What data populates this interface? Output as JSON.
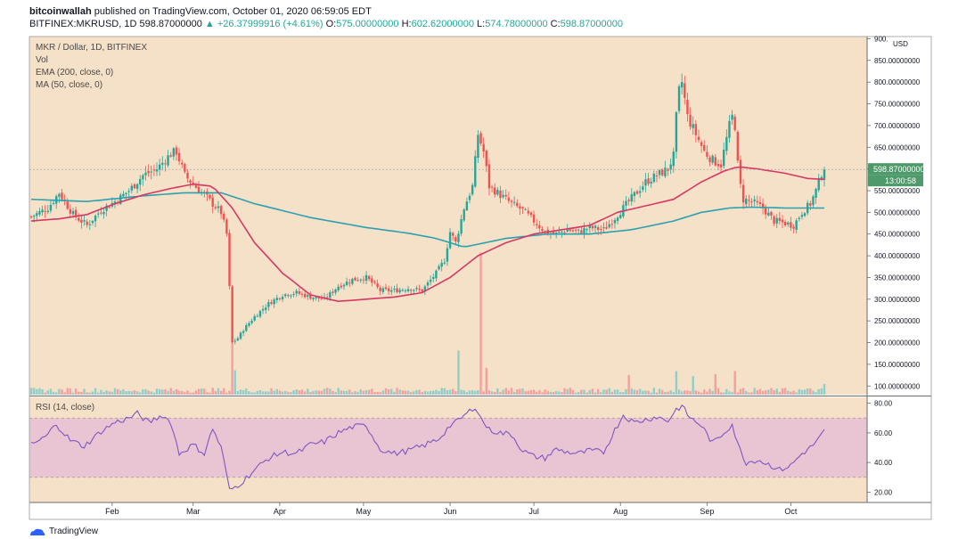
{
  "header": {
    "author": "bitcoinwallah",
    "published": "published on TradingView.com, October 01, 2020 06:59:05 EDT",
    "symbol": "BITFINEX:MKRUSD, 1D",
    "last": "598.87000000",
    "change": "+26.37999916 (+4.61%)",
    "o_label": "O:",
    "o": "575.00000000",
    "h_label": "H:",
    "h": "602.62000000",
    "l_label": "L:",
    "l": "574.78000000",
    "c_label": "C:",
    "c": "598.87000000"
  },
  "legend": {
    "title": "MKR / Dollar, 1D, BITFINEX",
    "vol": "Vol",
    "ema": "EMA (200, close, 0)",
    "ma": "MA (50, close, 0)"
  },
  "rsi_label": "RSI (14, close)",
  "price_badge": "598.87000000",
  "countdown_badge": "13:00:58",
  "currency": "USD",
  "brand": "TradingView",
  "colors": {
    "background": "#f5e0c8",
    "up": "#26a69a",
    "down": "#ef5350",
    "ema": "#2ba1b0",
    "ma": "#d63864",
    "rsi_line": "#7e57c2",
    "rsi_band": "#e9c4d2"
  },
  "chart_data": {
    "type": "candlestick",
    "price_axis": {
      "ylim": [
        80,
        905
      ],
      "ticks": [
        900,
        850,
        800,
        750,
        700,
        650,
        600,
        550,
        500,
        450,
        400,
        350,
        300,
        250,
        200,
        150,
        100
      ],
      "tick_labels": [
        "900.",
        "850.00000000",
        "800.00000000",
        "750.00000000",
        "700.00000000",
        "650.00000000",
        "600.00000000",
        "550.00000000",
        "500.00000000",
        "450.00000000",
        "400.00000000",
        "350.00000000",
        "300.00000000",
        "250.00000000",
        "200.00000000",
        "150.00000000",
        "100.00000000"
      ]
    },
    "rsi_axis": {
      "ylim": [
        13,
        84
      ],
      "ticks": [
        80,
        60,
        40,
        20
      ],
      "tick_labels": [
        "80.00",
        "60.00",
        "40.00",
        "20.00"
      ],
      "band": [
        30,
        70
      ]
    },
    "x_axis": {
      "months": [
        "Feb",
        "Mar",
        "Apr",
        "May",
        "Jun",
        "Jul",
        "Aug",
        "Sep",
        "Oct"
      ],
      "month_index": [
        29,
        58,
        89,
        119,
        150,
        180,
        211,
        242,
        272
      ]
    },
    "close_anchors": [
      [
        0,
        490
      ],
      [
        6,
        510
      ],
      [
        10,
        545
      ],
      [
        15,
        495
      ],
      [
        20,
        470
      ],
      [
        25,
        505
      ],
      [
        30,
        525
      ],
      [
        35,
        550
      ],
      [
        40,
        585
      ],
      [
        45,
        600
      ],
      [
        50,
        635
      ],
      [
        52,
        640
      ],
      [
        55,
        585
      ],
      [
        58,
        565
      ],
      [
        62,
        540
      ],
      [
        65,
        520
      ],
      [
        68,
        500
      ],
      [
        70,
        450
      ],
      [
        72,
        200
      ],
      [
        74,
        210
      ],
      [
        76,
        230
      ],
      [
        80,
        260
      ],
      [
        85,
        290
      ],
      [
        90,
        310
      ],
      [
        95,
        315
      ],
      [
        100,
        305
      ],
      [
        105,
        300
      ],
      [
        110,
        330
      ],
      [
        115,
        345
      ],
      [
        120,
        350
      ],
      [
        125,
        320
      ],
      [
        130,
        320
      ],
      [
        135,
        325
      ],
      [
        140,
        320
      ],
      [
        145,
        360
      ],
      [
        148,
        390
      ],
      [
        150,
        455
      ],
      [
        152,
        430
      ],
      [
        155,
        510
      ],
      [
        158,
        560
      ],
      [
        159,
        620
      ],
      [
        160,
        680
      ],
      [
        162,
        640
      ],
      [
        164,
        560
      ],
      [
        168,
        540
      ],
      [
        172,
        520
      ],
      [
        176,
        505
      ],
      [
        180,
        480
      ],
      [
        184,
        455
      ],
      [
        188,
        450
      ],
      [
        192,
        460
      ],
      [
        196,
        455
      ],
      [
        200,
        465
      ],
      [
        205,
        460
      ],
      [
        208,
        480
      ],
      [
        212,
        510
      ],
      [
        216,
        540
      ],
      [
        220,
        570
      ],
      [
        224,
        585
      ],
      [
        228,
        600
      ],
      [
        230,
        630
      ],
      [
        231,
        720
      ],
      [
        232,
        780
      ],
      [
        233,
        800
      ],
      [
        235,
        720
      ],
      [
        238,
        680
      ],
      [
        241,
        640
      ],
      [
        244,
        620
      ],
      [
        247,
        610
      ],
      [
        250,
        700
      ],
      [
        251,
        720
      ],
      [
        252,
        700
      ],
      [
        253,
        610
      ],
      [
        254,
        560
      ],
      [
        255,
        530
      ],
      [
        258,
        525
      ],
      [
        262,
        510
      ],
      [
        266,
        480
      ],
      [
        270,
        475
      ],
      [
        273,
        470
      ],
      [
        276,
        500
      ],
      [
        279,
        520
      ],
      [
        281,
        550
      ],
      [
        283,
        590
      ],
      [
        284,
        598.87
      ]
    ],
    "volume_spikes": [
      [
        72,
        120
      ],
      [
        73,
        50
      ],
      [
        153,
        90
      ],
      [
        161,
        290
      ],
      [
        163,
        55
      ],
      [
        245,
        42
      ],
      [
        237,
        38
      ],
      [
        214,
        40
      ],
      [
        231,
        48
      ],
      [
        252,
        48
      ],
      [
        284,
        22
      ]
    ],
    "ema_anchors": [
      [
        0,
        530
      ],
      [
        20,
        525
      ],
      [
        40,
        538
      ],
      [
        55,
        545
      ],
      [
        68,
        545
      ],
      [
        80,
        520
      ],
      [
        100,
        488
      ],
      [
        120,
        465
      ],
      [
        135,
        452
      ],
      [
        145,
        440
      ],
      [
        155,
        420
      ],
      [
        170,
        440
      ],
      [
        185,
        450
      ],
      [
        200,
        450
      ],
      [
        215,
        460
      ],
      [
        230,
        480
      ],
      [
        240,
        500
      ],
      [
        250,
        510
      ],
      [
        258,
        512
      ],
      [
        270,
        510
      ],
      [
        284,
        510
      ]
    ],
    "ma_anchors": [
      [
        0,
        480
      ],
      [
        10,
        485
      ],
      [
        20,
        495
      ],
      [
        30,
        520
      ],
      [
        40,
        540
      ],
      [
        50,
        555
      ],
      [
        58,
        565
      ],
      [
        65,
        560
      ],
      [
        72,
        510
      ],
      [
        80,
        430
      ],
      [
        90,
        360
      ],
      [
        100,
        310
      ],
      [
        110,
        295
      ],
      [
        120,
        300
      ],
      [
        130,
        305
      ],
      [
        140,
        315
      ],
      [
        150,
        350
      ],
      [
        160,
        400
      ],
      [
        170,
        430
      ],
      [
        180,
        450
      ],
      [
        190,
        460
      ],
      [
        200,
        470
      ],
      [
        210,
        500
      ],
      [
        220,
        515
      ],
      [
        230,
        530
      ],
      [
        240,
        570
      ],
      [
        248,
        595
      ],
      [
        253,
        605
      ],
      [
        260,
        600
      ],
      [
        270,
        590
      ],
      [
        278,
        578
      ],
      [
        284,
        576
      ]
    ],
    "rsi_anchors": [
      [
        0,
        52
      ],
      [
        5,
        57
      ],
      [
        9,
        66
      ],
      [
        14,
        55
      ],
      [
        19,
        51
      ],
      [
        25,
        61
      ],
      [
        30,
        67
      ],
      [
        35,
        70
      ],
      [
        38,
        73
      ],
      [
        42,
        67
      ],
      [
        47,
        72
      ],
      [
        50,
        67
      ],
      [
        53,
        46
      ],
      [
        58,
        52
      ],
      [
        62,
        46
      ],
      [
        65,
        63
      ],
      [
        68,
        50
      ],
      [
        70,
        32
      ],
      [
        71,
        21
      ],
      [
        75,
        26
      ],
      [
        80,
        35
      ],
      [
        85,
        43
      ],
      [
        90,
        47
      ],
      [
        95,
        46
      ],
      [
        100,
        52
      ],
      [
        105,
        54
      ],
      [
        110,
        60
      ],
      [
        115,
        64
      ],
      [
        120,
        65
      ],
      [
        125,
        49
      ],
      [
        130,
        46
      ],
      [
        135,
        48
      ],
      [
        140,
        51
      ],
      [
        146,
        56
      ],
      [
        150,
        65
      ],
      [
        152,
        67
      ],
      [
        156,
        73
      ],
      [
        159,
        78
      ],
      [
        161,
        70
      ],
      [
        164,
        62
      ],
      [
        168,
        60
      ],
      [
        172,
        59
      ],
      [
        176,
        48
      ],
      [
        180,
        44
      ],
      [
        184,
        43
      ],
      [
        188,
        49
      ],
      [
        192,
        47
      ],
      [
        196,
        46
      ],
      [
        200,
        48
      ],
      [
        205,
        47
      ],
      [
        209,
        62
      ],
      [
        212,
        72
      ],
      [
        216,
        67
      ],
      [
        220,
        69
      ],
      [
        224,
        71
      ],
      [
        228,
        68
      ],
      [
        231,
        76
      ],
      [
        233,
        78
      ],
      [
        236,
        70
      ],
      [
        240,
        65
      ],
      [
        244,
        53
      ],
      [
        248,
        60
      ],
      [
        251,
        66
      ],
      [
        253,
        52
      ],
      [
        256,
        40
      ],
      [
        260,
        42
      ],
      [
        265,
        38
      ],
      [
        268,
        35
      ],
      [
        272,
        38
      ],
      [
        276,
        46
      ],
      [
        279,
        50
      ],
      [
        282,
        56
      ],
      [
        284,
        61
      ]
    ]
  }
}
